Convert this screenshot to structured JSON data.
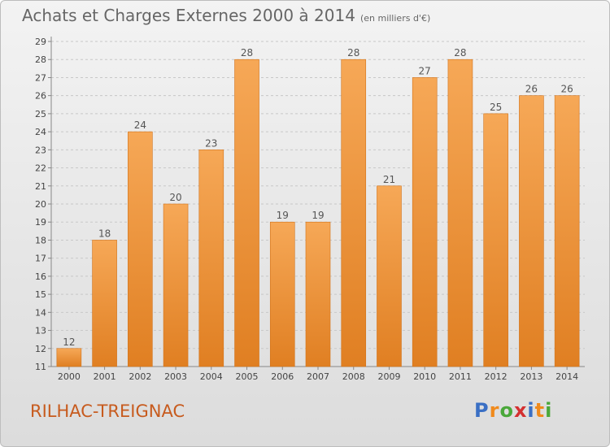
{
  "header": {
    "title": "Achats et Charges Externes 2000 à 2014",
    "unit": "(en milliers d'€)"
  },
  "footer": {
    "city": "RILHAC-TREIGNAC",
    "logo_letters": [
      {
        "ch": "P",
        "color": "#3a6fc4"
      },
      {
        "ch": "r",
        "color": "#f08a1c"
      },
      {
        "ch": "o",
        "color": "#4aa83a"
      },
      {
        "ch": "x",
        "color": "#d43030"
      },
      {
        "ch": "i",
        "color": "#3a6fc4"
      },
      {
        "ch": "t",
        "color": "#f08a1c"
      },
      {
        "ch": "i",
        "color": "#4aa83a"
      }
    ]
  },
  "chart_data": {
    "type": "bar",
    "categories": [
      "2000",
      "2001",
      "2002",
      "2003",
      "2004",
      "2005",
      "2006",
      "2007",
      "2008",
      "2009",
      "2010",
      "2011",
      "2012",
      "2013",
      "2014"
    ],
    "values": [
      12,
      18,
      24,
      20,
      23,
      28,
      19,
      19,
      28,
      21,
      27,
      28,
      25,
      26,
      26
    ],
    "ylim": [
      11,
      29
    ],
    "yticks": [
      11,
      12,
      13,
      14,
      15,
      16,
      17,
      18,
      19,
      20,
      21,
      22,
      23,
      24,
      25,
      26,
      27,
      28,
      29
    ],
    "grid": true,
    "bar_color_light": "#f6a857",
    "bar_color_dark": "#e07f22"
  }
}
